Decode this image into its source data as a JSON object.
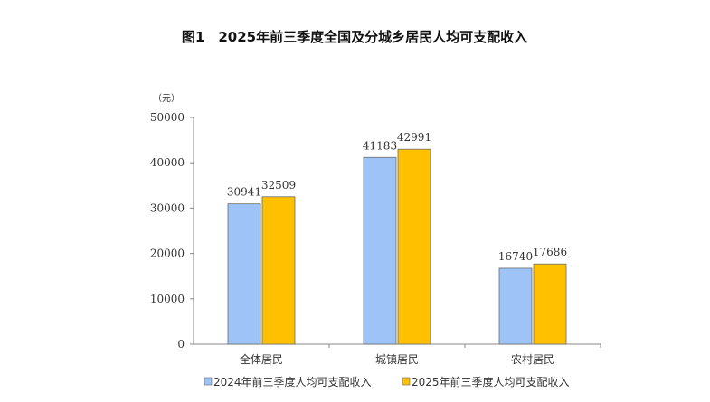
{
  "chart_data": {
    "type": "bar",
    "title": "图1　2025年前三季度全国及分城乡居民人均可支配收入",
    "unit_label": "（元）",
    "categories": [
      "全体居民",
      "城镇居民",
      "农村居民"
    ],
    "series": [
      {
        "name": "2024年前三季度人均可支配收入",
        "color": "#9DC3F7",
        "values": [
          30941,
          41183,
          16740
        ]
      },
      {
        "name": "2025年前三季度人均可支配收入",
        "color": "#FFC000",
        "values": [
          32509,
          42991,
          17686
        ]
      }
    ],
    "ylim": [
      0,
      50000
    ],
    "yticks": [
      0,
      10000,
      20000,
      30000,
      40000,
      50000
    ],
    "grid": false,
    "legend": "bottom-left",
    "xlabel": "",
    "ylabel": ""
  }
}
